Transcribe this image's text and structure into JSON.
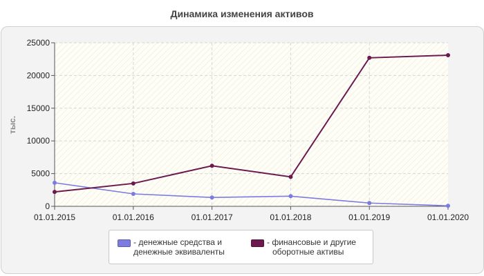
{
  "chart_data": {
    "type": "line",
    "title": "Динамика изменения активов",
    "ylabel": "тыс.",
    "x": [
      "01.01.2015",
      "01.01.2016",
      "01.01.2017",
      "01.01.2018",
      "01.01.2019",
      "01.01.2020"
    ],
    "ylim": [
      0,
      25000
    ],
    "yticks": [
      "0",
      "5000",
      "10000",
      "15000",
      "20000",
      "25000"
    ],
    "grid": true,
    "legend_position": "bottom",
    "series": [
      {
        "name": "- денежные средства и денежные эквиваленты",
        "legend_lines": [
          "- денежные средства и",
          "денежные эквиваленты"
        ],
        "color": "#7b7be0",
        "values": [
          3600,
          1900,
          1350,
          1550,
          500,
          80
        ]
      },
      {
        "name": "- финансовые и другие оборотные активы",
        "legend_lines": [
          "- финансовые и другие",
          "оборотные активы"
        ],
        "color": "#6b1a4f",
        "values": [
          2200,
          3500,
          6200,
          4500,
          22700,
          23100
        ]
      }
    ]
  }
}
